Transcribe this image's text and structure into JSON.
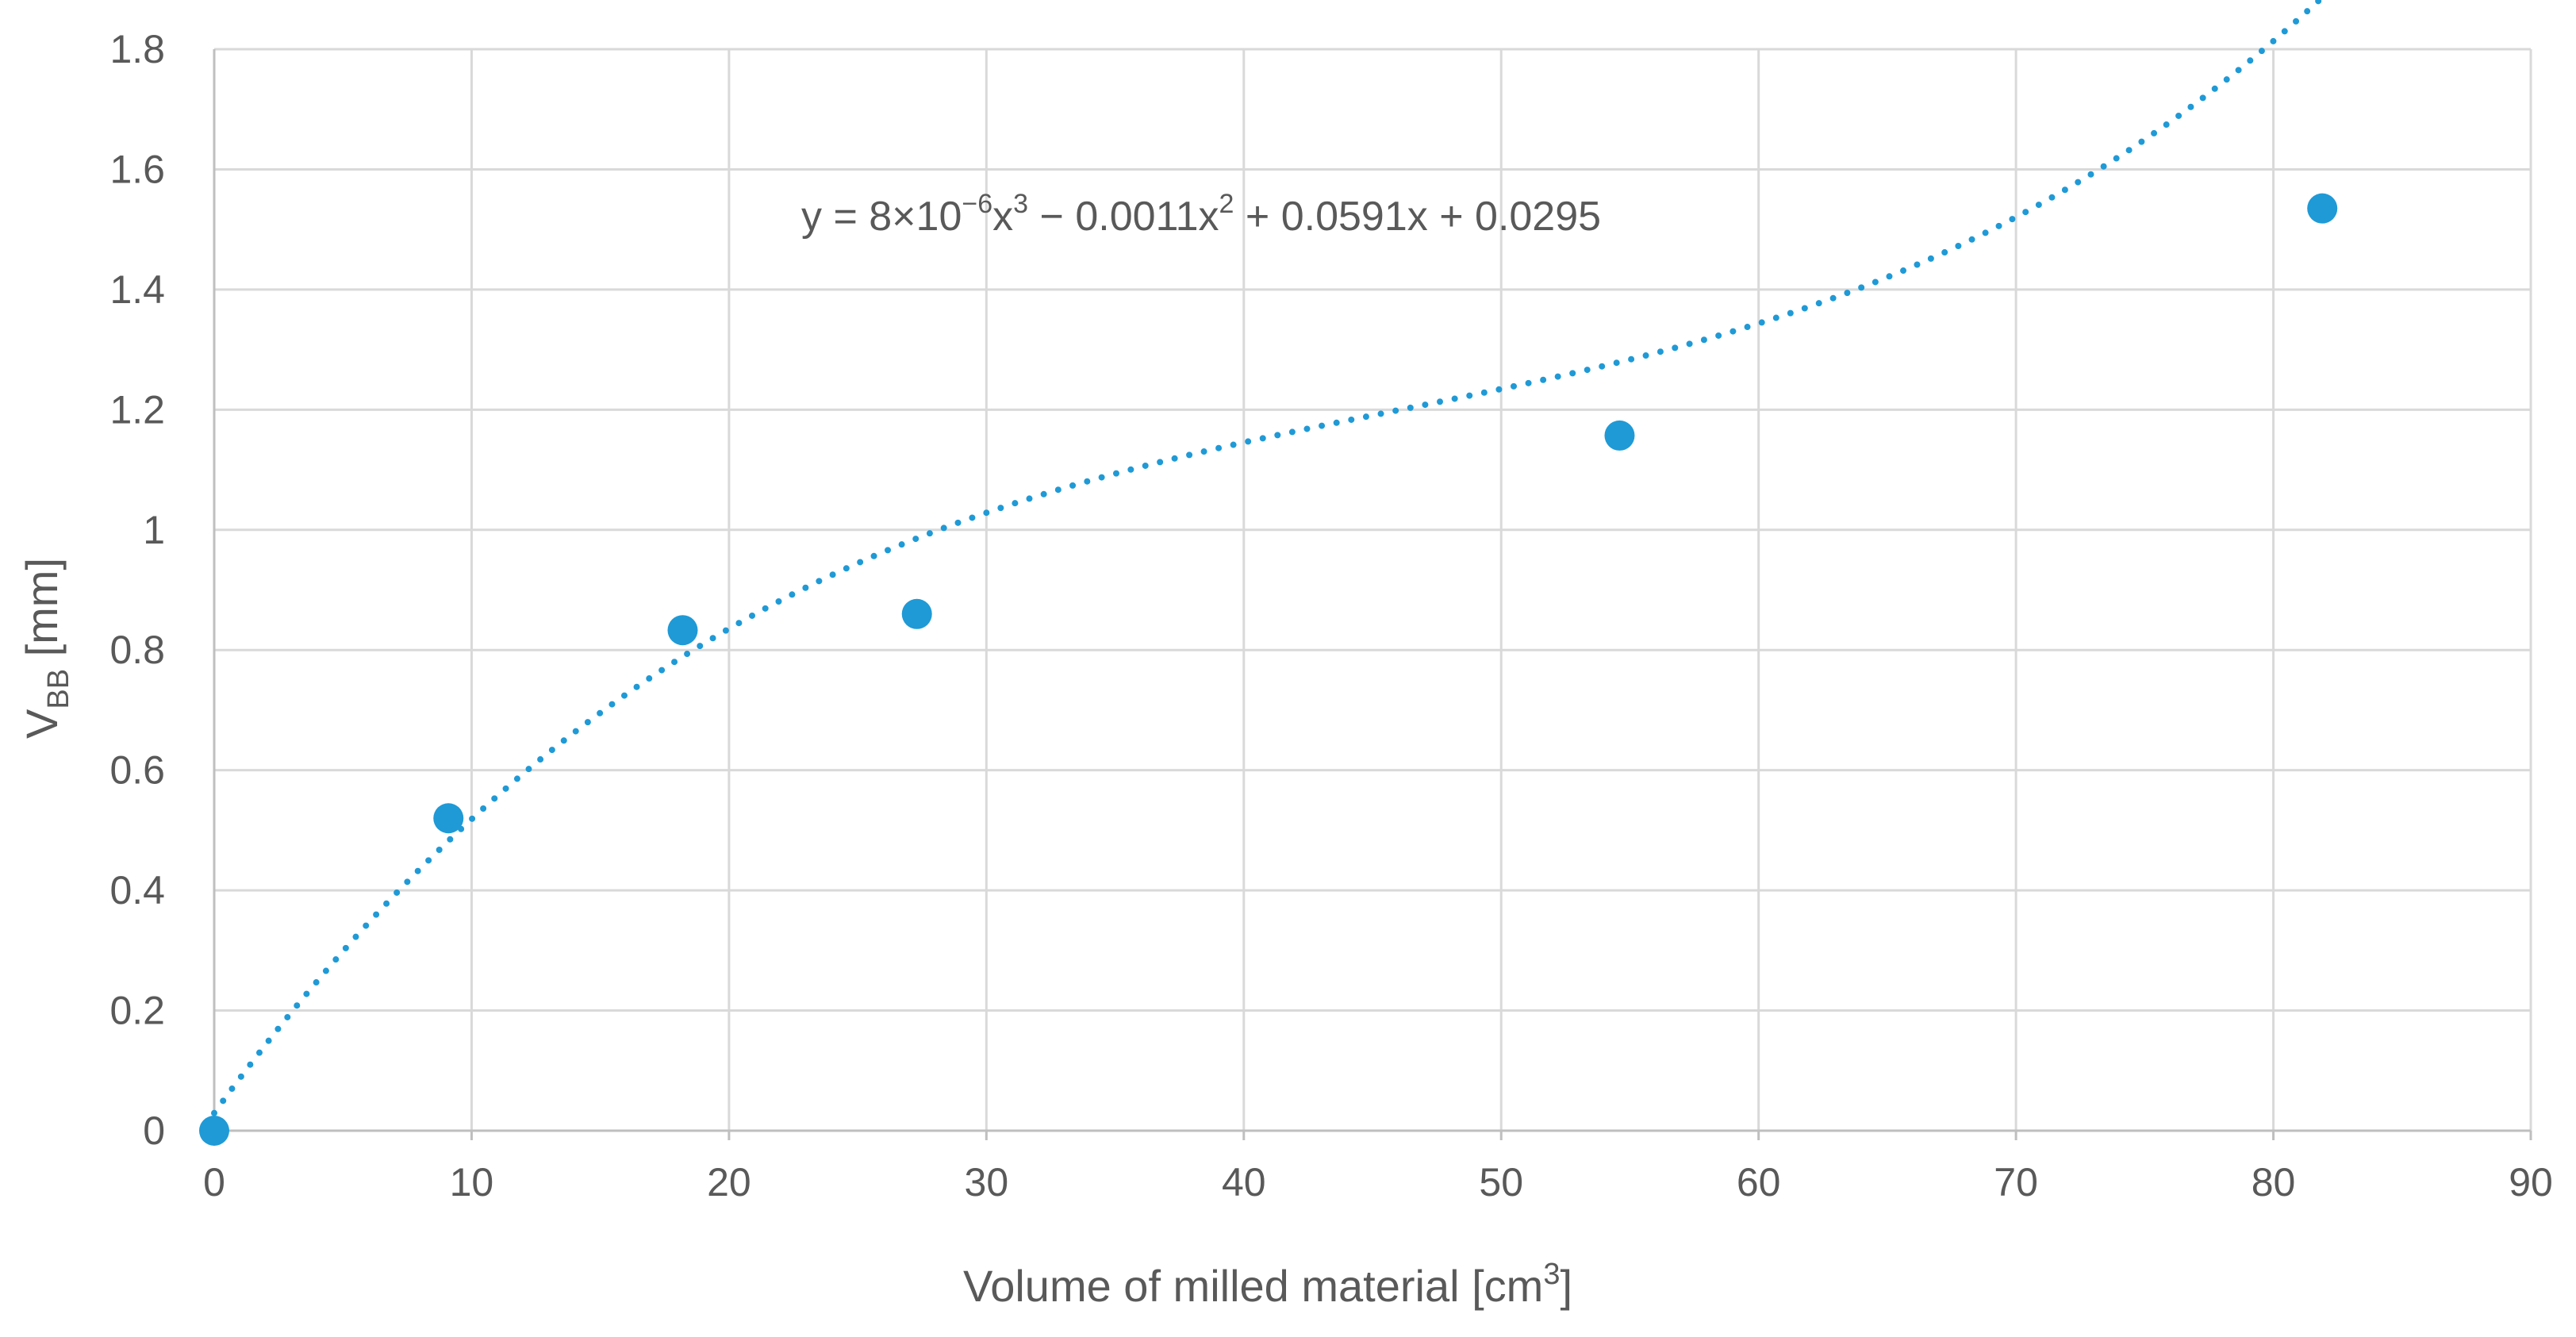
{
  "chart_data": {
    "type": "scatter",
    "title": "",
    "xlabel": {
      "main": "Volume of milled material [cm",
      "sup": "3",
      "tail": "]"
    },
    "ylabel": {
      "main": "V",
      "sub": "BB",
      "tail": " [mm]"
    },
    "xlim": [
      0,
      90
    ],
    "ylim": [
      0,
      1.8
    ],
    "xticks": [
      0,
      10,
      20,
      30,
      40,
      50,
      60,
      70,
      80,
      90
    ],
    "yticks": [
      0,
      0.2,
      0.4,
      0.6,
      0.8,
      1,
      1.2,
      1.4,
      1.6,
      1.8
    ],
    "grid": true,
    "colors": {
      "series": "#1f9ad6",
      "grid": "#d9d9d9",
      "axis": "#bfbfbf",
      "text": "#595959"
    },
    "series": [
      {
        "name": "VBB",
        "marker": "circle",
        "x": [
          0,
          9.1,
          18.2,
          27.3,
          54.6,
          81.9
        ],
        "y": [
          0,
          0.52,
          0.833,
          0.86,
          1.157,
          1.535
        ]
      }
    ],
    "trendline": {
      "type": "polynomial",
      "order": 3,
      "style": "dotted",
      "coefficients": [
        8e-06,
        -0.0011,
        0.0591,
        0.0295
      ],
      "x_range": [
        0,
        81.9
      ],
      "equation": {
        "part1": "y = 8×10",
        "sup1": "−6",
        "part2": "x",
        "sup2": "3",
        "part3": " − 0.0011x",
        "sup3": "2",
        "part4": " + 0.0591x + 0.0295"
      }
    }
  }
}
